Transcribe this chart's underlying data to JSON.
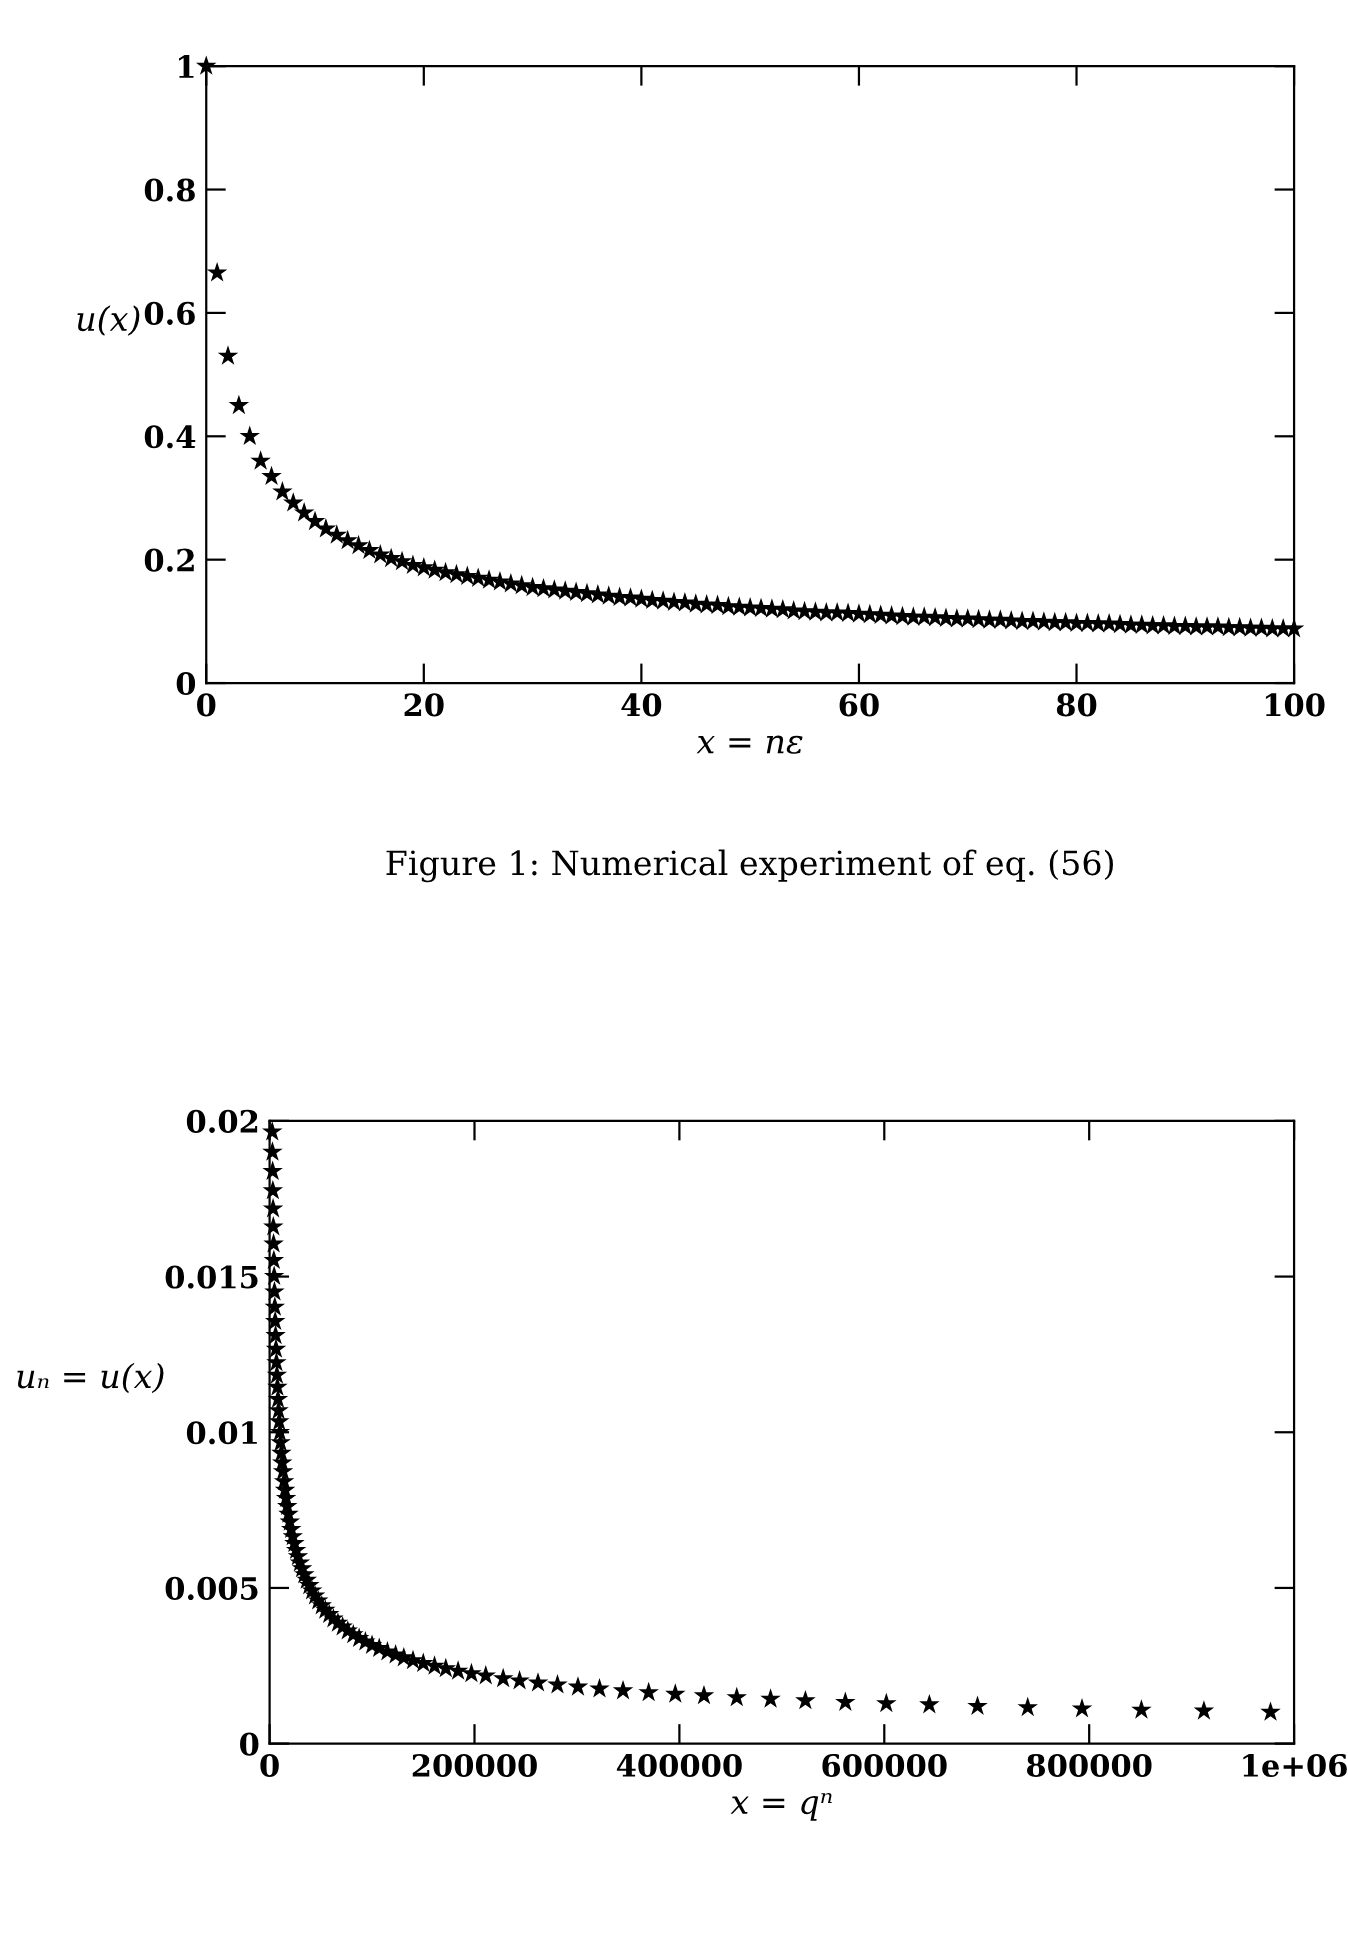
{
  "chart_data": [
    {
      "type": "scatter",
      "xlabel": "x = nε",
      "ylabel": "u(x)",
      "annotations": [
        "Figure 1: Numerical experiment of eq. (56)"
      ],
      "marker": "star",
      "xlim": [
        0,
        100
      ],
      "ylim": [
        0,
        1
      ],
      "xticks": [
        0,
        20,
        40,
        60,
        80,
        100
      ],
      "yticks": [
        0,
        0.2,
        0.4,
        0.6,
        0.8,
        1
      ],
      "x": [
        0,
        1,
        2,
        3,
        4,
        5,
        6,
        7,
        8,
        9,
        10,
        11,
        12,
        13,
        14,
        15,
        16,
        17,
        18,
        19,
        20,
        21,
        22,
        23,
        24,
        25,
        26,
        27,
        28,
        29,
        30,
        31,
        32,
        33,
        34,
        35,
        36,
        37,
        38,
        39,
        40,
        41,
        42,
        43,
        44,
        45,
        46,
        47,
        48,
        49,
        50,
        51,
        52,
        53,
        54,
        55,
        56,
        57,
        58,
        59,
        60,
        61,
        62,
        63,
        64,
        65,
        66,
        67,
        68,
        69,
        70,
        71,
        72,
        73,
        74,
        75,
        76,
        77,
        78,
        79,
        80,
        81,
        82,
        83,
        84,
        85,
        86,
        87,
        88,
        89,
        90,
        91,
        92,
        93,
        94,
        95,
        96,
        97,
        98,
        99,
        100
      ],
      "series": [
        {
          "color": "#000000",
          "values": [
            1,
            0.665,
            0.53,
            0.45,
            0.4,
            0.36,
            0.335,
            0.31,
            0.292,
            0.276,
            0.262,
            0.25,
            0.24,
            0.231,
            0.223,
            0.215,
            0.208,
            0.202,
            0.197,
            0.191,
            0.187,
            0.183,
            0.179,
            0.176,
            0.173,
            0.17,
            0.167,
            0.164,
            0.161,
            0.158,
            0.155,
            0.153,
            0.151,
            0.149,
            0.147,
            0.145,
            0.143,
            0.141,
            0.139,
            0.138,
            0.136,
            0.134,
            0.133,
            0.131,
            0.13,
            0.128,
            0.127,
            0.126,
            0.124,
            0.123,
            0.122,
            0.121,
            0.12,
            0.119,
            0.117,
            0.116,
            0.115,
            0.114,
            0.114,
            0.113,
            0.112,
            0.111,
            0.11,
            0.109,
            0.108,
            0.107,
            0.107,
            0.106,
            0.105,
            0.104,
            0.104,
            0.103,
            0.102,
            0.102,
            0.101,
            0.1,
            0.1,
            0.099,
            0.098,
            0.098,
            0.097,
            0.097,
            0.096,
            0.096,
            0.095,
            0.094,
            0.094,
            0.093,
            0.093,
            0.092,
            0.092,
            0.091,
            0.091,
            0.091,
            0.09,
            0.09,
            0.089,
            0.089,
            0.088,
            0.088,
            0.088
          ]
        }
      ]
    },
    {
      "type": "scatter",
      "xlabel": "x = qⁿ",
      "ylabel": "uₙ = u(x)",
      "marker": "star",
      "xlim": [
        0,
        1000000
      ],
      "ylim": [
        0,
        0.02
      ],
      "xticks": [
        0,
        200000,
        400000,
        600000,
        800000,
        {
          "value": 1000000,
          "label": "1e+06"
        }
      ],
      "yticks": [
        0,
        0.005,
        0.01,
        0.015,
        0.02
      ],
      "x": [
        2590,
        2770,
        2960,
        3170,
        3390,
        3630,
        3880,
        4150,
        4440,
        4750,
        5090,
        5440,
        5820,
        6230,
        6670,
        7130,
        7630,
        8170,
        8740,
        9350,
        10000,
        10700,
        11500,
        12300,
        13100,
        14100,
        15100,
        16100,
        17200,
        18400,
        19700,
        21100,
        22600,
        24200,
        25900,
        27700,
        29600,
        31700,
        33900,
        36300,
        38800,
        41500,
        44400,
        47500,
        50900,
        54400,
        58200,
        62300,
        66700,
        71300,
        76300,
        81700,
        87400,
        93500,
        100000,
        107000,
        115000,
        123000,
        131000,
        140000,
        150000,
        161000,
        172000,
        184000,
        197000,
        211000,
        228000,
        244000,
        262000,
        281000,
        301000,
        322000,
        345000,
        370000,
        396000,
        424000,
        456000,
        489000,
        523000,
        562000,
        602000,
        644000,
        691000,
        740000,
        793000,
        851000,
        912000,
        977000
      ],
      "series": [
        {
          "color": "#000000",
          "values": [
            0.01965,
            0.019,
            0.01838,
            0.01776,
            0.01718,
            0.0166,
            0.01605,
            0.01552,
            0.01501,
            0.01451,
            0.01402,
            0.01356,
            0.01311,
            0.01267,
            0.01224,
            0.01184,
            0.01145,
            0.01106,
            0.0107,
            0.01034,
            0.01,
            0.00967,
            0.00933,
            0.00902,
            0.00874,
            0.00842,
            0.00814,
            0.00788,
            0.00762,
            0.00737,
            0.00712,
            0.00688,
            0.00665,
            0.00643,
            0.00621,
            0.00601,
            0.00581,
            0.00562,
            0.00543,
            0.00525,
            0.00508,
            0.00491,
            0.00475,
            0.00459,
            0.00443,
            0.00429,
            0.00415,
            0.00401,
            0.00387,
            0.00375,
            0.00362,
            0.0035,
            0.00338,
            0.00327,
            0.00316,
            0.00306,
            0.00295,
            0.00285,
            0.00276,
            0.00267,
            0.00258,
            0.00249,
            0.00241,
            0.00233,
            0.00225,
            0.00218,
            0.00209,
            0.00202,
            0.00195,
            0.00189,
            0.00182,
            0.00176,
            0.0017,
            0.00164,
            0.00159,
            0.00154,
            0.00148,
            0.00143,
            0.00138,
            0.00133,
            0.00129,
            0.00125,
            0.0012,
            0.00116,
            0.00112,
            0.00108,
            0.00105,
            0.00101
          ]
        }
      ]
    }
  ]
}
